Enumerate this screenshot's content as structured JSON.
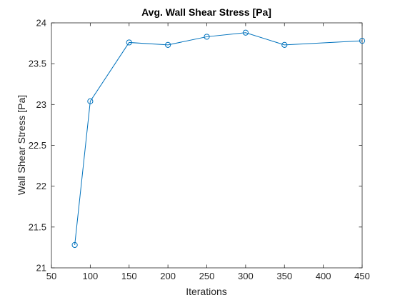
{
  "chart_data": {
    "type": "line",
    "title": "Avg. Wall Shear Stress [Pa]",
    "xlabel": "Iterations",
    "ylabel": "Wall Shear Stress [Pa]",
    "xlim": [
      50,
      450
    ],
    "ylim": [
      21,
      24
    ],
    "xticks": [
      50,
      100,
      150,
      200,
      250,
      300,
      350,
      400,
      450
    ],
    "yticks": [
      21,
      21.5,
      22,
      22.5,
      23,
      23.5,
      24
    ],
    "grid": false,
    "series": [
      {
        "x": [
          80,
          100,
          150,
          200,
          250,
          300,
          350,
          450
        ],
        "y": [
          21.28,
          23.04,
          23.76,
          23.73,
          23.83,
          23.88,
          23.73,
          23.78
        ],
        "marker": "circle",
        "color": "#0072BD"
      }
    ]
  }
}
